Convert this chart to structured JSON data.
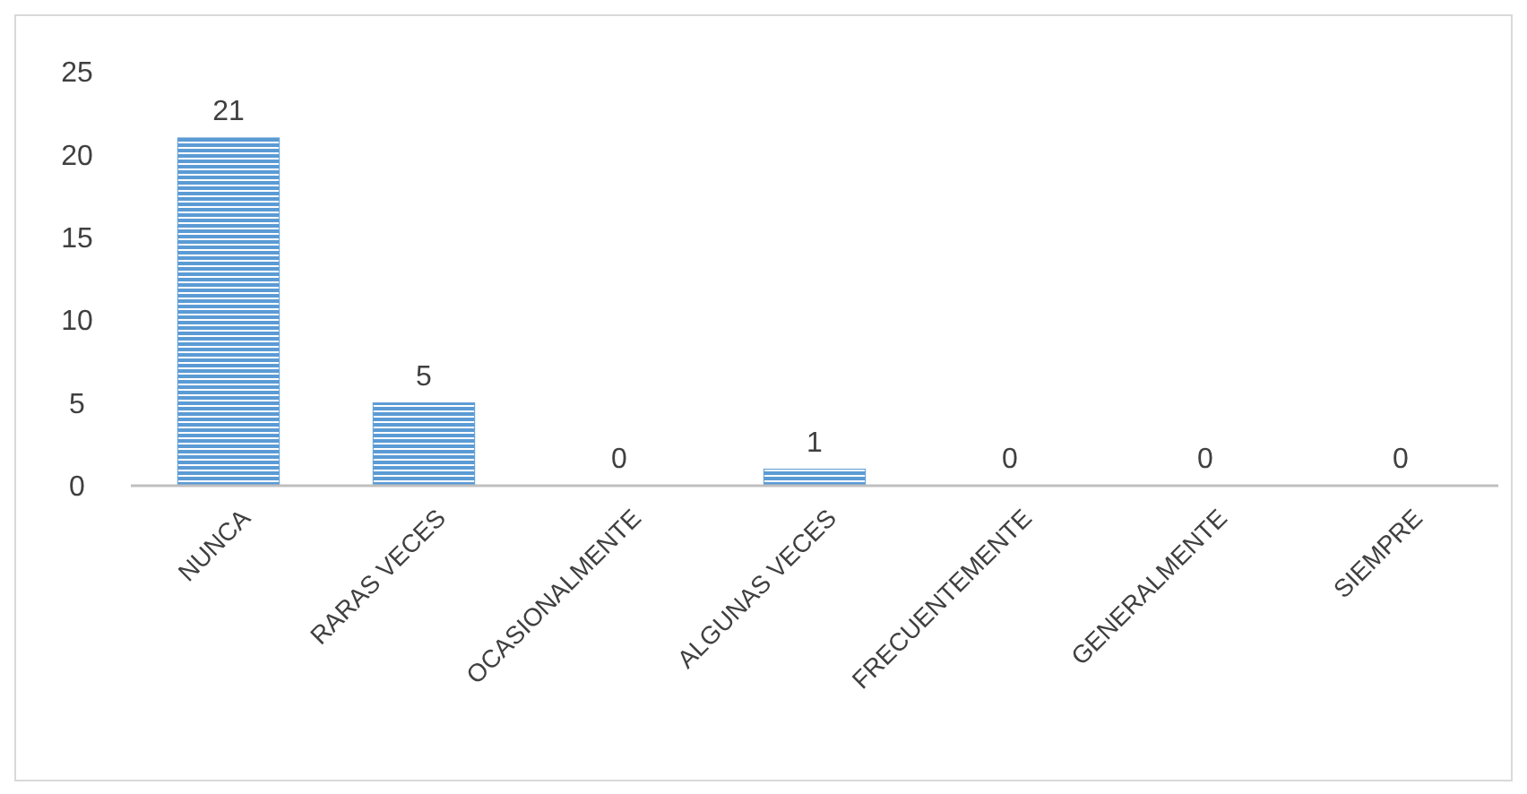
{
  "chart_data": {
    "type": "bar",
    "categories": [
      "NUNCA",
      "RARAS VECES",
      "OCASIONALMENTE",
      "ALGUNAS VECES",
      "FRECUENTEMENTE",
      "GENERALMENTE",
      "SIEMPRE"
    ],
    "values": [
      21,
      5,
      0,
      1,
      0,
      0,
      0
    ],
    "color": "#5b9bd5",
    "ylim": [
      0,
      25
    ],
    "yticks": [
      0,
      5,
      10,
      15,
      20,
      25
    ],
    "grid": false,
    "data_labels": true
  }
}
